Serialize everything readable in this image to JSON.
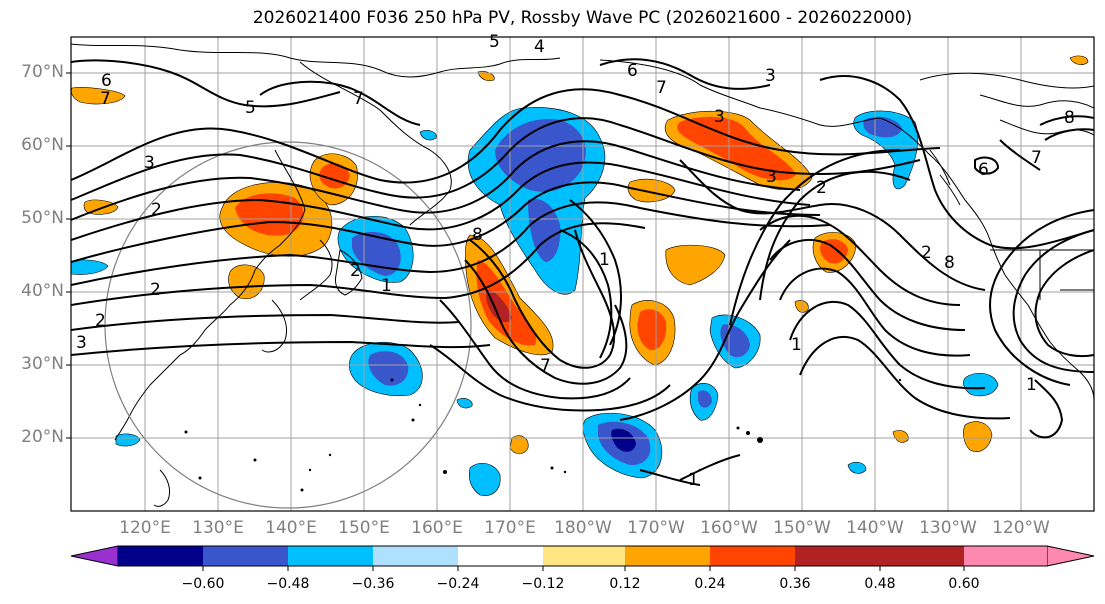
{
  "title": "2026021400 F036 250 hPa PV, Rossby Wave PC (2026021600 - 2026022000)",
  "lat_labels": [
    "70°N",
    "60°N",
    "50°N",
    "40°N",
    "30°N",
    "20°N"
  ],
  "lon_labels": [
    "120°E",
    "130°E",
    "140°E",
    "150°E",
    "160°E",
    "170°E",
    "180°W",
    "170°W",
    "160°W",
    "150°W",
    "140°W",
    "130°W",
    "120°W"
  ],
  "colorbar": {
    "colors": [
      "#9b30d0",
      "#00008b",
      "#3a56cc",
      "#00bfff",
      "#b0e0ff",
      "#ffffff",
      "#ffe680",
      "#ffa500",
      "#ff4500",
      "#b22222",
      "#ff88b0"
    ],
    "tick_labels": [
      "−0.60",
      "−0.48",
      "−0.36",
      "−0.24",
      "−0.12",
      "0.12",
      "0.24",
      "0.36",
      "0.48",
      "0.60"
    ]
  },
  "contour_labels": [
    "6",
    "7",
    "5",
    "4",
    "5",
    "6",
    "7",
    "3",
    "2",
    "1",
    "2",
    "8",
    "1",
    "7",
    "3",
    "2",
    "1",
    "7",
    "2",
    "8",
    "3",
    "2",
    "1",
    "3",
    "8",
    "6",
    "3",
    "2",
    "7",
    "1"
  ],
  "colors": {
    "ocean": "#ffffff",
    "land_line": "#000000",
    "pv_line": "#000000",
    "grid": "#a0a0a0",
    "circle": "#808080"
  }
}
